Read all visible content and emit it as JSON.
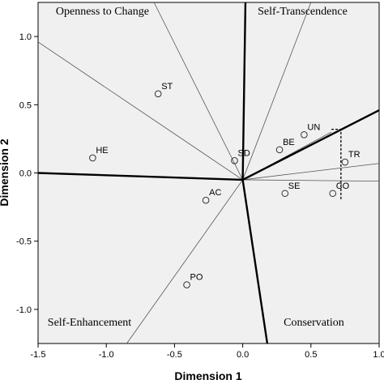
{
  "chart_data": {
    "type": "scatter",
    "xlabel": "Dimension 1",
    "ylabel": "Dimension 2",
    "xlim": [
      -1.5,
      1.0
    ],
    "ylim": [
      -1.25,
      1.25
    ],
    "xticks": [
      "-1.5",
      "-1.0",
      "-0.5",
      "0.0",
      "0.5",
      "1.0"
    ],
    "yticks": [
      "-1.0",
      "-0.5",
      "0.0",
      "0.5",
      "1.0"
    ],
    "xtick_values": [
      -1.5,
      -1.0,
      -0.5,
      0.0,
      0.5,
      1.0
    ],
    "ytick_values": [
      -1.0,
      -0.5,
      0.0,
      0.5,
      1.0
    ],
    "background": "#f0f0f0",
    "points": [
      {
        "label": "ST",
        "x": -0.62,
        "y": 0.58
      },
      {
        "label": "HE",
        "x": -1.1,
        "y": 0.11
      },
      {
        "label": "SD",
        "x": -0.06,
        "y": 0.09
      },
      {
        "label": "BE",
        "x": 0.27,
        "y": 0.17
      },
      {
        "label": "UN",
        "x": 0.45,
        "y": 0.28
      },
      {
        "label": "TR",
        "x": 0.75,
        "y": 0.08
      },
      {
        "label": "SE",
        "x": 0.31,
        "y": -0.15
      },
      {
        "label": "CO",
        "x": 0.66,
        "y": -0.15
      },
      {
        "label": "AC",
        "x": -0.27,
        "y": -0.2
      },
      {
        "label": "PO",
        "x": -0.41,
        "y": -0.82
      }
    ],
    "origin": [
      0.0,
      -0.05
    ],
    "thick_lines": [
      [
        0.02,
        1.25
      ],
      [
        1.0,
        0.46
      ],
      [
        0.18,
        -1.25
      ],
      [
        -1.5,
        0.0
      ]
    ],
    "thin_lines": [
      [
        -0.65,
        1.25
      ],
      [
        0.5,
        1.25
      ],
      [
        -1.5,
        0.96
      ],
      [
        1.0,
        0.07
      ],
      [
        1.0,
        -0.06
      ],
      [
        -0.85,
        -1.25
      ],
      [
        0.65,
        0.3
      ]
    ],
    "dashed_bracket": [
      [
        0.65,
        0.32
      ],
      [
        0.72,
        0.32
      ],
      [
        0.72,
        -0.2
      ]
    ],
    "regions": [
      {
        "label": "Openness to Change",
        "x": -1.37,
        "y": 1.16
      },
      {
        "label": "Self-Transcendence",
        "x": 0.11,
        "y": 1.16
      },
      {
        "label": "Self-Enhancement",
        "x": -1.43,
        "y": -1.12
      },
      {
        "label": "Conservation",
        "x": 0.3,
        "y": -1.12
      }
    ]
  }
}
